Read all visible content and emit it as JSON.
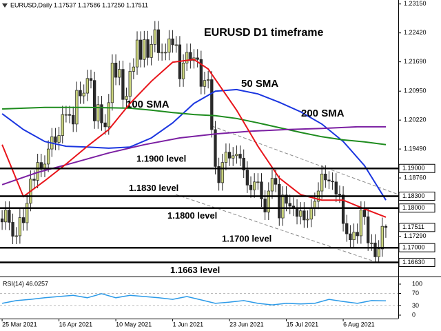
{
  "chart_data": [
    {
      "type": "candlestick",
      "title": "EURUSD D1 timeframe",
      "header": "EURUSD,Daily  1.17537 1.17586 1.17250 1.17511",
      "up_color": "#c9d37c",
      "down_color": "#2a2a2a",
      "open": [
        1.1773,
        1.1765,
        1.1795,
        1.1764,
        1.1729,
        1.173,
        1.1776,
        1.1763,
        1.1812,
        1.1873,
        1.187,
        1.1915,
        1.1898,
        1.1911,
        1.1949,
        1.198,
        1.1966,
        1.1983,
        1.2036,
        1.2036,
        1.2034,
        1.2012,
        1.2097,
        1.2083,
        1.209,
        1.2127,
        1.2122,
        1.202,
        1.2061,
        1.2015,
        1.2005,
        1.2066,
        1.2166,
        1.213,
        1.215,
        1.2074,
        1.2082,
        1.2145,
        1.2156,
        1.2224,
        1.2175,
        1.2225,
        1.218,
        1.2213,
        1.225,
        1.2192,
        1.2193,
        1.2193,
        1.2227,
        1.2212,
        1.2212,
        1.2126,
        1.2166,
        1.2193,
        1.2172,
        1.2179,
        1.2175,
        1.2107,
        1.2122,
        1.2124,
        1.1998,
        1.1905,
        1.1864,
        1.1915,
        1.1941,
        1.1926,
        1.1932,
        1.1936,
        1.1926,
        1.1896,
        1.1858,
        1.1846,
        1.1866,
        1.1866,
        1.1823,
        1.179,
        1.1843,
        1.1875,
        1.186,
        1.1775,
        1.1833,
        1.1812,
        1.1805,
        1.18,
        1.1779,
        1.1793,
        1.177,
        1.1772,
        1.18,
        1.1817,
        1.1843,
        1.1886,
        1.1871,
        1.1868,
        1.1866,
        1.1835,
        1.1833,
        1.1761,
        1.1735,
        1.172,
        1.1739,
        1.173,
        1.1795,
        1.1778,
        1.1712,
        1.1712,
        1.1677,
        1.1697,
        1.17537
      ],
      "high": [
        1.1795,
        1.1817,
        1.1817,
        1.1786,
        1.1752,
        1.1798,
        1.1798,
        1.1834,
        1.1895,
        1.1895,
        1.1937,
        1.1937,
        1.1933,
        1.1971,
        1.2002,
        1.2002,
        1.2005,
        1.2058,
        1.2058,
        1.2058,
        1.2056,
        1.2119,
        1.2119,
        1.2112,
        1.2149,
        1.2149,
        1.2144,
        1.2083,
        1.2083,
        1.2037,
        1.2088,
        1.2188,
        1.2188,
        1.2172,
        1.2172,
        1.2104,
        1.2167,
        1.2178,
        1.2246,
        1.2246,
        1.2247,
        1.2247,
        1.2235,
        1.2272,
        1.2272,
        1.2215,
        1.2215,
        1.2249,
        1.2249,
        1.2234,
        1.2234,
        1.2188,
        1.2215,
        1.2215,
        1.2201,
        1.2201,
        1.2197,
        1.2144,
        1.2146,
        1.2146,
        1.202,
        1.1927,
        1.1937,
        1.1963,
        1.1963,
        1.1954,
        1.1958,
        1.1958,
        1.1948,
        1.1918,
        1.188,
        1.1888,
        1.1888,
        1.1888,
        1.1845,
        1.1865,
        1.1897,
        1.1897,
        1.1882,
        1.1855,
        1.1855,
        1.1834,
        1.1827,
        1.1822,
        1.1815,
        1.1815,
        1.1794,
        1.1822,
        1.1839,
        1.1865,
        1.1908,
        1.1908,
        1.1893,
        1.189,
        1.1888,
        1.1857,
        1.1855,
        1.1783,
        1.1757,
        1.1761,
        1.1761,
        1.1817,
        1.1817,
        1.18,
        1.1734,
        1.1734,
        1.1719,
        1.1776,
        1.17586
      ],
      "low": [
        1.1745,
        1.1745,
        1.1744,
        1.1709,
        1.1709,
        1.171,
        1.1743,
        1.1743,
        1.1792,
        1.185,
        1.185,
        1.1878,
        1.1878,
        1.1891,
        1.1929,
        1.1946,
        1.1946,
        1.1963,
        1.2016,
        1.2014,
        1.1992,
        1.1992,
        1.2063,
        1.2063,
        1.207,
        1.2102,
        1.2,
        1.2,
        1.1995,
        1.1985,
        1.1985,
        1.2046,
        1.211,
        1.211,
        1.2054,
        1.2054,
        1.2062,
        1.2125,
        1.2136,
        1.2155,
        1.2155,
        1.216,
        1.216,
        1.2193,
        1.2172,
        1.2172,
        1.2173,
        1.2173,
        1.2192,
        1.2192,
        1.2106,
        1.2106,
        1.2146,
        1.2152,
        1.2152,
        1.2155,
        1.2087,
        1.2087,
        1.2102,
        1.1978,
        1.1885,
        1.1844,
        1.1844,
        1.1895,
        1.1906,
        1.1906,
        1.1912,
        1.1906,
        1.1876,
        1.1838,
        1.1826,
        1.1826,
        1.1846,
        1.1803,
        1.177,
        1.177,
        1.1823,
        1.184,
        1.1755,
        1.1755,
        1.1792,
        1.1785,
        1.178,
        1.1759,
        1.1759,
        1.175,
        1.175,
        1.1752,
        1.178,
        1.1797,
        1.1823,
        1.1851,
        1.1848,
        1.1846,
        1.1815,
        1.1813,
        1.1741,
        1.1715,
        1.17,
        1.17,
        1.171,
        1.171,
        1.1758,
        1.1692,
        1.1692,
        1.1663,
        1.1663,
        1.1677,
        1.1725
      ],
      "close": [
        1.1765,
        1.1795,
        1.1764,
        1.1729,
        1.173,
        1.1776,
        1.1763,
        1.1812,
        1.1873,
        1.187,
        1.1915,
        1.1898,
        1.1911,
        1.1949,
        1.198,
        1.1966,
        1.1983,
        1.2036,
        1.2036,
        1.2034,
        1.2012,
        1.2097,
        1.2083,
        1.209,
        1.2127,
        1.2122,
        1.202,
        1.2061,
        1.2015,
        1.2005,
        1.2066,
        1.2166,
        1.213,
        1.215,
        1.2074,
        1.2082,
        1.2145,
        1.2156,
        1.2224,
        1.2175,
        1.2225,
        1.218,
        1.2213,
        1.225,
        1.2192,
        1.2193,
        1.2193,
        1.2227,
        1.2212,
        1.2212,
        1.2126,
        1.2166,
        1.2193,
        1.2172,
        1.2179,
        1.2175,
        1.2107,
        1.2122,
        1.2124,
        1.1998,
        1.1905,
        1.1864,
        1.1915,
        1.1941,
        1.1926,
        1.1932,
        1.1936,
        1.1926,
        1.1896,
        1.1858,
        1.1846,
        1.1866,
        1.1866,
        1.1823,
        1.179,
        1.1843,
        1.1875,
        1.186,
        1.1775,
        1.1833,
        1.1812,
        1.1805,
        1.18,
        1.1779,
        1.1793,
        1.177,
        1.1772,
        1.18,
        1.1817,
        1.1843,
        1.1886,
        1.1871,
        1.1868,
        1.1866,
        1.1835,
        1.1833,
        1.1761,
        1.1735,
        1.172,
        1.1739,
        1.173,
        1.1795,
        1.1778,
        1.1712,
        1.1712,
        1.1677,
        1.1697,
        1.1754,
        1.17511
      ],
      "series": [
        {
          "name": "50 SMA",
          "color": "#1a35e0",
          "x": [
            0,
            6,
            12,
            18,
            24,
            30,
            36,
            42,
            48,
            54,
            60,
            66,
            72,
            78,
            84,
            90,
            96,
            102,
            108
          ],
          "values": [
            1.2038,
            1.1998,
            1.1968,
            1.1956,
            1.1954,
            1.1951,
            1.1954,
            1.1977,
            1.2015,
            1.2064,
            1.2095,
            1.2099,
            1.2088,
            1.2067,
            1.2043,
            1.2012,
            1.1968,
            1.1907,
            1.182
          ]
        },
        {
          "name": "100 SMA",
          "color": "#1e8c1e",
          "x": [
            0,
            12,
            24,
            36,
            42,
            48,
            54,
            60,
            66,
            72,
            78,
            84,
            90,
            96,
            102,
            108
          ],
          "values": [
            1.205,
            1.2054,
            1.2054,
            1.2052,
            1.2047,
            1.2041,
            1.2036,
            1.2033,
            1.2026,
            1.2015,
            1.2003,
            1.1991,
            1.198,
            1.1972,
            1.1967,
            1.196
          ]
        },
        {
          "name": "200 SMA",
          "color": "#7b1fa2",
          "x": [
            0,
            10,
            20,
            30,
            40,
            50,
            60,
            70,
            80,
            90,
            100,
            108
          ],
          "values": [
            1.1859,
            1.189,
            1.1914,
            1.1939,
            1.196,
            1.1977,
            1.1987,
            1.1994,
            1.1998,
            1.2001,
            1.2005,
            1.2005
          ]
        },
        {
          "color": "#e8141a",
          "x": [
            0,
            6,
            12,
            18,
            24,
            30,
            36,
            42,
            48,
            54,
            58,
            62,
            66,
            72,
            78,
            84,
            90,
            96,
            102,
            108
          ],
          "values": [
            1.196,
            1.1829,
            1.1869,
            1.1911,
            1.1956,
            1.1998,
            1.2064,
            1.212,
            1.2168,
            1.2175,
            1.2151,
            1.2099,
            1.2047,
            1.1956,
            1.1876,
            1.1834,
            1.182,
            1.182,
            1.1798,
            1.1777
          ]
        }
      ],
      "levels": [
        {
          "value": 1.19,
          "label": "1.19000",
          "text": "1.1900 level"
        },
        {
          "value": 1.183,
          "label": "1.18300",
          "text": "1.1830 level"
        },
        {
          "value": 1.18,
          "label": "1.18000",
          "text": "1.1800 level"
        },
        {
          "value": 1.17,
          "label": "1.17000",
          "text": "1.1700 level"
        },
        {
          "value": 1.1663,
          "label": "1.16630",
          "text": "1.1663 level"
        }
      ],
      "last_price": {
        "value": 1.17511,
        "label": "1.17511"
      },
      "xlim": [
        -0.6,
        111.5
      ],
      "xticks": [
        {
          "value": 0,
          "label": "25 Mar 2021"
        },
        {
          "value": 16,
          "label": "16 Apr 2021"
        },
        {
          "value": 32,
          "label": "10 May 2021"
        },
        {
          "value": 48,
          "label": "1 Jun 2021"
        },
        {
          "value": 64,
          "label": "23 Jun 2021"
        },
        {
          "value": 80,
          "label": "15 Jul 2021"
        },
        {
          "value": 96,
          "label": "6 Aug 2021"
        }
      ],
      "ylim": [
        1.1629,
        1.2325
      ],
      "yticks": [
        {
          "value": 1.2315,
          "label": "1.23150"
        },
        {
          "value": 1.2242,
          "label": "1.22420"
        },
        {
          "value": 1.2169,
          "label": "1.21690"
        },
        {
          "value": 1.2095,
          "label": "1.20950"
        },
        {
          "value": 1.2022,
          "label": "1.20220"
        },
        {
          "value": 1.1949,
          "label": "1.19490"
        },
        {
          "value": 1.1876,
          "label": "1.18760"
        },
        {
          "value": 1.1729,
          "label": "1.17290"
        }
      ]
    },
    {
      "type": "line",
      "title": "RSI(14) 46.0257",
      "color": "#2b9ae8",
      "x": [
        0,
        4,
        8,
        12,
        16,
        20,
        24,
        28,
        32,
        36,
        40,
        44,
        48,
        52,
        56,
        60,
        64,
        68,
        72,
        76,
        80,
        84,
        88,
        92,
        96,
        100,
        104,
        108
      ],
      "values": [
        38,
        47,
        51,
        56,
        60,
        64,
        56,
        69,
        56,
        64,
        60,
        56,
        51,
        60,
        49,
        38,
        42,
        47,
        38,
        33,
        38,
        36,
        38,
        51,
        44,
        38,
        47,
        46.03
      ],
      "ylim": [
        0,
        100
      ],
      "yticks": [
        100,
        70,
        30,
        0
      ]
    }
  ]
}
